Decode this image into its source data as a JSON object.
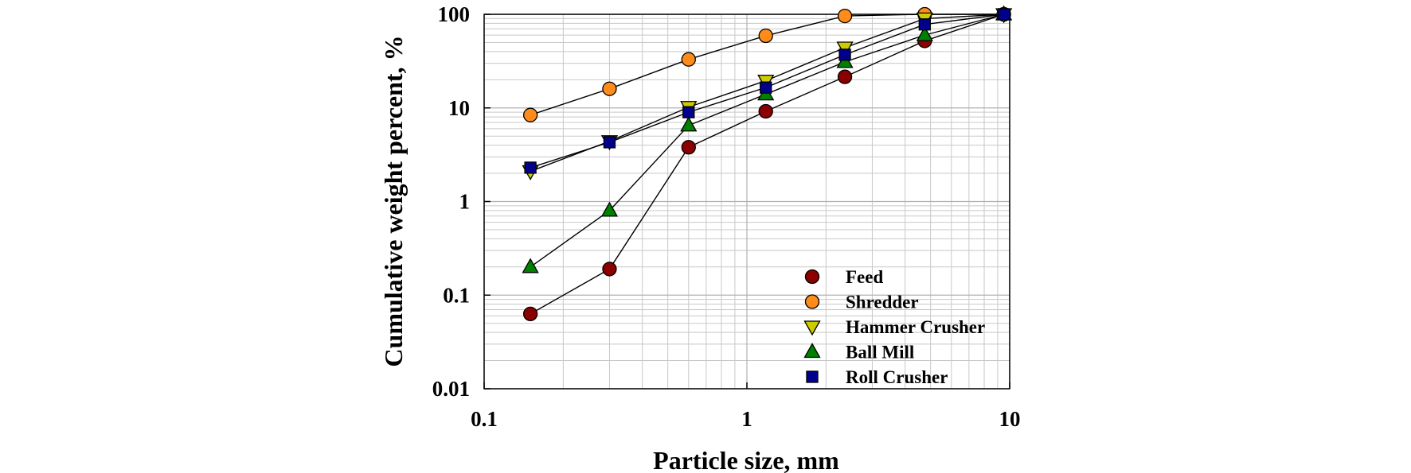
{
  "chart_data": {
    "type": "line",
    "scale": "log-log",
    "xlabel": "Particle size, mm",
    "ylabel": "Cumulative weight percent, %",
    "xlim": [
      0.1,
      10
    ],
    "ylim": [
      0.01,
      100
    ],
    "x_ticks": [
      0.1,
      1,
      10
    ],
    "x_tick_labels": [
      "0.1",
      "1",
      "10"
    ],
    "y_ticks": [
      0.01,
      0.1,
      1,
      10,
      100
    ],
    "y_tick_labels": [
      "0.01",
      "0.1",
      "1",
      "10",
      "100"
    ],
    "grid": true,
    "legend_position": "bottom-right",
    "x": [
      0.15,
      0.3,
      0.6,
      1.18,
      2.36,
      4.75,
      9.5
    ],
    "series": [
      {
        "name": "Feed",
        "marker": "circle",
        "color": "#8b0000",
        "values": [
          0.063,
          0.19,
          3.8,
          9.2,
          21.5,
          52,
          100
        ]
      },
      {
        "name": "Shredder",
        "marker": "circle",
        "color": "#ff8c1a",
        "values": [
          8.4,
          16,
          33,
          59,
          96,
          100,
          100
        ]
      },
      {
        "name": "Hammer Crusher",
        "marker": "triangle-down",
        "color": "#cccc00",
        "values": [
          2.1,
          4.4,
          10.2,
          19.5,
          44,
          90,
          100
        ]
      },
      {
        "name": "Ball Mill",
        "marker": "triangle-up",
        "color": "#008000",
        "values": [
          0.2,
          0.8,
          6.5,
          14,
          31,
          60,
          100
        ]
      },
      {
        "name": "Roll Crusher",
        "marker": "square",
        "color": "#00008b",
        "values": [
          2.3,
          4.3,
          9,
          16.5,
          37,
          78,
          100
        ]
      }
    ]
  }
}
